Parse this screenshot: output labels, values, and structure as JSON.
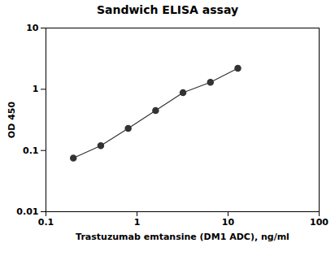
{
  "chart_data": {
    "type": "line",
    "title": "Sandwich ELISA assay",
    "xlabel": "Trastuzumab emtansine (DM1 ADC), ng/ml",
    "ylabel": "OD 450",
    "x": [
      0.2,
      0.4,
      0.8,
      1.6,
      3.2,
      6.4,
      12.8
    ],
    "series": [
      {
        "values": [
          0.075,
          0.12,
          0.23,
          0.45,
          0.88,
          1.3,
          2.2
        ],
        "color": "#333333",
        "marker": "circle"
      }
    ],
    "log": true,
    "xlim": [
      0.1,
      100
    ],
    "ylim": [
      0.01,
      10
    ],
    "xticks": [
      0.1,
      1,
      10,
      100
    ],
    "yticks": [
      0.01,
      0.1,
      1,
      10
    ],
    "grid": false
  }
}
